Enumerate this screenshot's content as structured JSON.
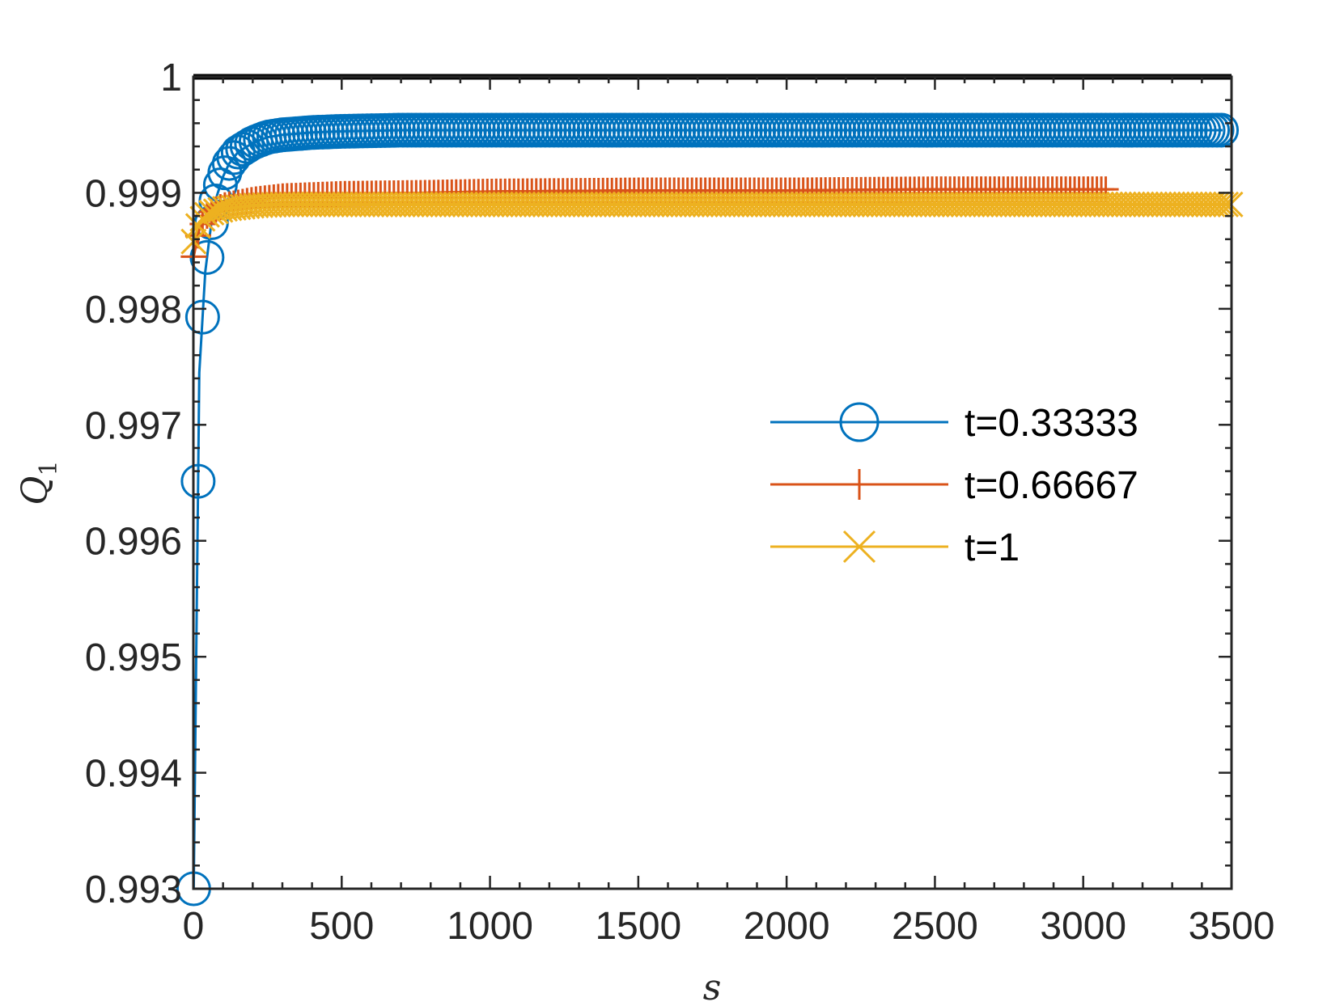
{
  "chart_data": {
    "type": "line",
    "xlabel": "s",
    "ylabel": "Q",
    "ylabel_subscript": "1",
    "xlim": [
      0,
      3500
    ],
    "ylim": [
      0.993,
      1
    ],
    "xticks": [
      0,
      500,
      1000,
      1500,
      2000,
      2500,
      3000,
      3500
    ],
    "yticks": [
      0.993,
      0.994,
      0.995,
      0.996,
      0.997,
      0.998,
      0.999,
      1
    ],
    "xtick_labels": [
      "0",
      "500",
      "1000",
      "1500",
      "2000",
      "2500",
      "3000",
      "3500"
    ],
    "ytick_labels": [
      "0.993",
      "0.994",
      "0.995",
      "0.996",
      "0.997",
      "0.998",
      "0.999",
      "1"
    ],
    "grid": false,
    "legend_position": "right",
    "reference_line": {
      "y": 1,
      "x_range": [
        0,
        3500
      ],
      "color": "#000000"
    },
    "series": [
      {
        "name": "t=0.33333",
        "marker": "circle",
        "color": "#0072BD",
        "marker_step": 15,
        "x_end": 3470,
        "x": [
          1,
          20,
          40,
          60,
          80,
          100,
          120,
          150,
          200,
          250,
          300,
          400,
          500,
          700,
          1000,
          1500,
          2000,
          2500,
          3000,
          3470
        ],
        "y": [
          0.993,
          0.99745,
          0.99832,
          0.99873,
          0.99898,
          0.99914,
          0.99925,
          0.99935,
          0.99943,
          0.99948,
          0.9995,
          0.99952,
          0.99953,
          0.99954,
          0.99954,
          0.99954,
          0.99954,
          0.99954,
          0.99954,
          0.99954
        ]
      },
      {
        "name": "t=0.66667",
        "marker": "plus",
        "color": "#D95319",
        "marker_step": 15,
        "x_end": 3080,
        "x": [
          1,
          20,
          50,
          100,
          200,
          300,
          500,
          800,
          1000,
          1500,
          2000,
          2500,
          3080
        ],
        "y": [
          0.99845,
          0.99868,
          0.99882,
          0.99889,
          0.99894,
          0.99897,
          0.99899,
          0.999,
          0.99901,
          0.99902,
          0.99902,
          0.99903,
          0.99903
        ]
      },
      {
        "name": "t=1",
        "marker": "x",
        "color": "#EDB120",
        "marker_step": 15,
        "x_end": 3500,
        "x": [
          1,
          20,
          50,
          100,
          200,
          300,
          500,
          1000,
          2000,
          3000,
          3500
        ],
        "y": [
          0.99858,
          0.99875,
          0.99882,
          0.99886,
          0.99889,
          0.9989,
          0.9989,
          0.9989,
          0.9989,
          0.9989,
          0.9989
        ]
      }
    ]
  }
}
